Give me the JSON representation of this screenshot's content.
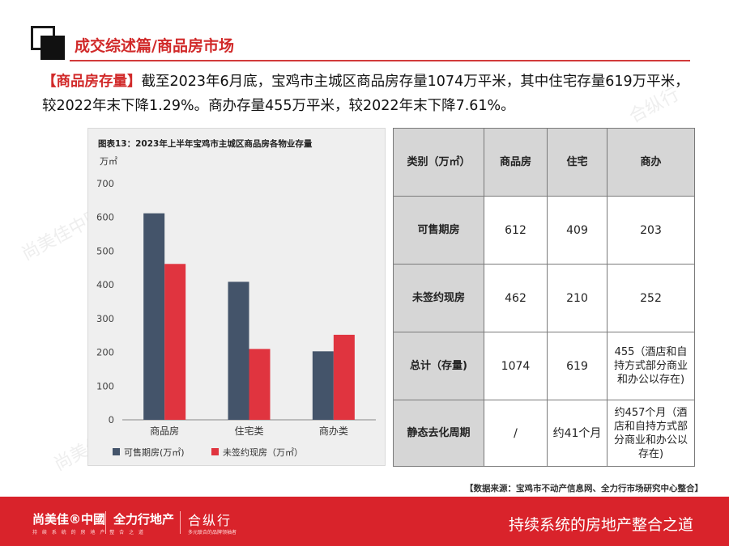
{
  "header": {
    "title": "成交综述篇/商品房市场"
  },
  "intro": {
    "tag": "【商品房存量】",
    "text": "截至2023年6月底，宝鸡市主城区商品房存量1074万平米，其中住宅存量619万平米，较2022年末下降1.29%。商办存量455万平米，较2022年末下降7.61%。"
  },
  "chart_data": {
    "type": "bar",
    "title": "图表13：2023年上半年宝鸡市主城区商品房各物业存量",
    "ylabel": "万㎡",
    "categories": [
      "商品房",
      "住宅类",
      "商办类"
    ],
    "ylim": [
      0,
      700
    ],
    "yticks": [
      0,
      100,
      200,
      300,
      400,
      500,
      600,
      700
    ],
    "series": [
      {
        "name": "可售期房(万㎡)",
        "values": [
          612,
          409,
          203
        ],
        "color": "#44546a"
      },
      {
        "name": "未签约现房（万㎡）",
        "values": [
          462,
          210,
          252
        ],
        "color": "#e0343f"
      }
    ],
    "legend": "bottom",
    "grid": false
  },
  "table": {
    "headers": [
      "类别（万㎡）",
      "商品房",
      "住宅",
      "商办"
    ],
    "rows": [
      [
        "可售期房",
        "612",
        "409",
        "203"
      ],
      [
        "未签约现房",
        "462",
        "210",
        "252"
      ],
      [
        "总计（存量)",
        "1074",
        "619",
        "455（酒店和自持方式部分商业和办公以存在)"
      ],
      [
        "静态去化周期",
        "/",
        "约41个月",
        "约457个月（酒店和自持方式部分商业和办公以存在)"
      ]
    ]
  },
  "source": "【数据来源：宝鸡市不动产信息网、全力行市场研究中心整合】",
  "footer": {
    "brand1": "尚美佳®中國",
    "brand1_sub": "持 续 系 统 的 房 地 产 整 合 之 道",
    "brand2": "全力行地产",
    "brand3": "合纵行",
    "brand3_sub": "多元联合的品牌领袖者",
    "slogan": "持续系统的房地产整合之道"
  },
  "watermarks": [
    "尚美佳中国",
    "全力行地产",
    "合纵行"
  ]
}
